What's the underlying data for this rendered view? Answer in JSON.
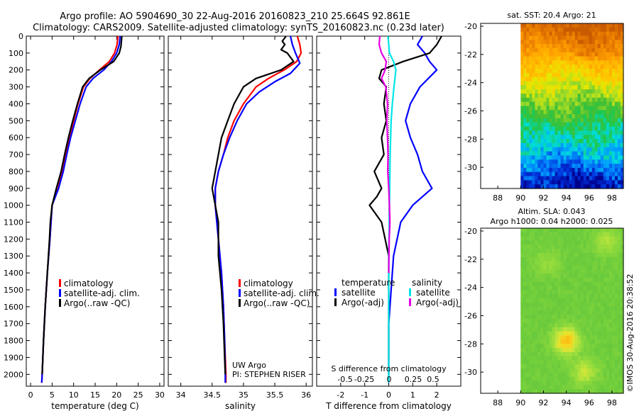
{
  "header": {
    "line1": "Argo profile: AO 5904690_30 22-Aug-2016 20160823_210 25.664S 92.861E",
    "line2": "Climatology: CARS2009. Satellite-adjusted climatology: synTS_20160823.nc (0.23d later)"
  },
  "credit": "©IMOS 30-Aug-2016 20:38:52",
  "colors": {
    "climatology": "#ff0000",
    "satellite": "#0000ff",
    "argo": "#000000",
    "sat_salinity": "#00e5e5",
    "argo_salinity": "#e600e6"
  },
  "chart_data": [
    {
      "id": "temperature",
      "type": "line",
      "xlabel": "temperature (deg C)",
      "xlim": [
        -1,
        31
      ],
      "ylim": [
        2070,
        0
      ],
      "xticks": [
        0,
        5,
        10,
        15,
        20,
        25,
        30
      ],
      "yticks": [
        0,
        100,
        200,
        300,
        400,
        500,
        600,
        700,
        800,
        900,
        1000,
        1100,
        1200,
        1300,
        1400,
        1500,
        1600,
        1700,
        1800,
        1900,
        2000
      ],
      "legend": [
        "climatology",
        "satellite-adj. clim.",
        "Argo(..raw -QC)"
      ],
      "series": [
        {
          "name": "climatology",
          "color": "#ff0000",
          "points": [
            [
              20.3,
              0
            ],
            [
              20.1,
              50
            ],
            [
              19.5,
              100
            ],
            [
              18.3,
              150
            ],
            [
              16.0,
              200
            ],
            [
              13.8,
              250
            ],
            [
              12.3,
              300
            ],
            [
              11.0,
              400
            ],
            [
              10.0,
              500
            ],
            [
              9.0,
              600
            ],
            [
              8.2,
              700
            ],
            [
              7.4,
              800
            ],
            [
              6.4,
              900
            ],
            [
              5.0,
              1000
            ],
            [
              4.5,
              1200
            ],
            [
              3.9,
              1400
            ],
            [
              3.4,
              1600
            ],
            [
              3.0,
              1800
            ],
            [
              2.7,
              2000
            ],
            [
              2.6,
              2050
            ]
          ]
        },
        {
          "name": "satellite-adj. clim.",
          "color": "#0000ff",
          "points": [
            [
              20.8,
              0
            ],
            [
              20.6,
              50
            ],
            [
              20.0,
              100
            ],
            [
              18.8,
              150
            ],
            [
              17.0,
              200
            ],
            [
              14.5,
              250
            ],
            [
              12.9,
              300
            ],
            [
              11.5,
              400
            ],
            [
              10.4,
              500
            ],
            [
              9.3,
              600
            ],
            [
              8.4,
              700
            ],
            [
              7.6,
              800
            ],
            [
              6.5,
              900
            ],
            [
              5.0,
              1000
            ],
            [
              4.5,
              1200
            ],
            [
              3.9,
              1400
            ],
            [
              3.4,
              1600
            ],
            [
              3.0,
              1800
            ],
            [
              2.7,
              2000
            ],
            [
              2.6,
              2050
            ]
          ]
        },
        {
          "name": "Argo(..raw -QC)",
          "color": "#000000",
          "points": [
            [
              21.2,
              0
            ],
            [
              21.1,
              30
            ],
            [
              21.0,
              60
            ],
            [
              20.6,
              100
            ],
            [
              19.3,
              150
            ],
            [
              16.2,
              200
            ],
            [
              13.6,
              250
            ],
            [
              12.1,
              300
            ],
            [
              10.9,
              400
            ],
            [
              9.8,
              500
            ],
            [
              8.8,
              600
            ],
            [
              7.9,
              700
            ],
            [
              7.1,
              800
            ],
            [
              6.0,
              900
            ],
            [
              5.0,
              1000
            ],
            [
              4.6,
              1100
            ],
            [
              4.4,
              1200
            ],
            [
              3.9,
              1400
            ],
            [
              3.4,
              1600
            ],
            [
              3.0,
              1800
            ],
            [
              2.7,
              2000
            ]
          ]
        }
      ]
    },
    {
      "id": "salinity",
      "type": "line",
      "xlabel": "salinity",
      "xlim": [
        33.8,
        36.1
      ],
      "ylim": [
        2070,
        0
      ],
      "xticks": [
        34,
        34.5,
        35,
        35.5,
        36
      ],
      "xtick_labels": [
        "34",
        "34.5",
        "35",
        "35.5",
        "36"
      ],
      "legend": [
        "climatology",
        "satellite-adj. clim.",
        "Argo(..raw -QC)"
      ],
      "annotation": [
        "UW Argo",
        "PI: STEPHEN RISER"
      ],
      "series": [
        {
          "name": "climatology",
          "color": "#ff0000",
          "points": [
            [
              35.86,
              0
            ],
            [
              35.9,
              50
            ],
            [
              35.92,
              100
            ],
            [
              35.85,
              150
            ],
            [
              35.65,
              200
            ],
            [
              35.4,
              250
            ],
            [
              35.2,
              300
            ],
            [
              35.0,
              400
            ],
            [
              34.85,
              500
            ],
            [
              34.75,
              600
            ],
            [
              34.68,
              700
            ],
            [
              34.6,
              800
            ],
            [
              34.55,
              900
            ],
            [
              34.55,
              1000
            ],
            [
              34.6,
              1200
            ],
            [
              34.65,
              1400
            ],
            [
              34.68,
              1600
            ],
            [
              34.7,
              1800
            ],
            [
              34.72,
              2000
            ],
            [
              34.72,
              2050
            ]
          ]
        },
        {
          "name": "satellite-adj. clim.",
          "color": "#0000ff",
          "points": [
            [
              35.75,
              0
            ],
            [
              35.78,
              50
            ],
            [
              35.83,
              100
            ],
            [
              35.9,
              160
            ],
            [
              35.75,
              220
            ],
            [
              35.5,
              270
            ],
            [
              35.25,
              330
            ],
            [
              35.05,
              400
            ],
            [
              34.9,
              500
            ],
            [
              34.78,
              600
            ],
            [
              34.68,
              700
            ],
            [
              34.6,
              800
            ],
            [
              34.55,
              900
            ],
            [
              34.55,
              1000
            ],
            [
              34.6,
              1200
            ],
            [
              34.65,
              1400
            ],
            [
              34.68,
              1600
            ],
            [
              34.7,
              1800
            ],
            [
              34.71,
              2000
            ],
            [
              34.71,
              2050
            ]
          ]
        },
        {
          "name": "Argo(..raw -QC)",
          "color": "#000000",
          "points": [
            [
              35.68,
              0
            ],
            [
              35.62,
              30
            ],
            [
              35.66,
              50
            ],
            [
              35.6,
              80
            ],
            [
              35.7,
              100
            ],
            [
              35.8,
              150
            ],
            [
              35.6,
              200
            ],
            [
              35.2,
              250
            ],
            [
              35.0,
              300
            ],
            [
              34.85,
              400
            ],
            [
              34.75,
              500
            ],
            [
              34.65,
              600
            ],
            [
              34.6,
              700
            ],
            [
              34.55,
              800
            ],
            [
              34.5,
              900
            ],
            [
              34.55,
              1000
            ],
            [
              34.6,
              1100
            ],
            [
              34.6,
              1300
            ],
            [
              34.65,
              1500
            ],
            [
              34.68,
              1700
            ],
            [
              34.7,
              1900
            ],
            [
              34.71,
              2000
            ]
          ]
        }
      ]
    },
    {
      "id": "difference",
      "type": "line",
      "xlabel_top": "S difference from climatology",
      "xlabel_bottom": "T difference from climatology",
      "xlim": [
        -3,
        3
      ],
      "ylim": [
        2070,
        0
      ],
      "xticks": [
        -2,
        -1,
        0,
        1,
        2
      ],
      "s_ticks": [
        -0.5,
        -0.25,
        0,
        0.25,
        0.5
      ],
      "s_tick_labels": [
        "-0.5",
        "-0.25",
        "0",
        "0.25",
        "0.5"
      ],
      "zero_line": true,
      "legend_groups": [
        {
          "title": "temperature",
          "entries": [
            "satellite",
            "Argo(-adj)"
          ]
        },
        {
          "title": "salinity",
          "entries": [
            "satellite",
            "Argo(-adj)"
          ]
        }
      ],
      "series": [
        {
          "name": "temperature satellite",
          "color": "#0000ff",
          "points": [
            [
              1.4,
              0
            ],
            [
              1.2,
              50
            ],
            [
              1.5,
              100
            ],
            [
              1.7,
              150
            ],
            [
              2.0,
              200
            ],
            [
              1.3,
              300
            ],
            [
              0.9,
              400
            ],
            [
              0.7,
              500
            ],
            [
              0.9,
              600
            ],
            [
              1.2,
              700
            ],
            [
              1.4,
              800
            ],
            [
              1.8,
              900
            ],
            [
              1.0,
              1000
            ],
            [
              0.5,
              1100
            ],
            [
              0.2,
              1300
            ],
            [
              0.1,
              1500
            ],
            [
              0.0,
              1700
            ],
            [
              0.0,
              2050
            ]
          ]
        },
        {
          "name": "temperature Argo(-adj)",
          "color": "#000000",
          "points": [
            [
              2.2,
              0
            ],
            [
              2.0,
              50
            ],
            [
              1.7,
              100
            ],
            [
              0.6,
              150
            ],
            [
              -0.3,
              200
            ],
            [
              -0.4,
              250
            ],
            [
              -0.1,
              300
            ],
            [
              -0.2,
              400
            ],
            [
              -0.1,
              500
            ],
            [
              -0.3,
              600
            ],
            [
              -0.2,
              700
            ],
            [
              -0.6,
              800
            ],
            [
              -0.3,
              900
            ],
            [
              -0.5,
              950
            ],
            [
              -0.8,
              1000
            ],
            [
              -0.3,
              1100
            ],
            [
              0.0,
              1300
            ],
            [
              0.0,
              1500
            ],
            [
              0.0,
              2000
            ]
          ]
        },
        {
          "name": "salinity satellite",
          "color": "#00e5e5",
          "points": [
            [
              -0.03,
              0
            ],
            [
              0.03,
              100
            ],
            [
              0.2,
              150
            ],
            [
              0.3,
              200
            ],
            [
              0.22,
              300
            ],
            [
              0.15,
              400
            ],
            [
              0.1,
              500
            ],
            [
              0.06,
              700
            ],
            [
              0.04,
              900
            ],
            [
              0.02,
              1100
            ],
            [
              0.0,
              1300
            ],
            [
              0.0,
              1500
            ],
            [
              0.0,
              1700
            ],
            [
              0.0,
              2050
            ]
          ]
        },
        {
          "name": "salinity Argo(-adj)",
          "color": "#e600e6",
          "points": [
            [
              -0.37,
              0
            ],
            [
              -0.4,
              50
            ],
            [
              -0.3,
              100
            ],
            [
              -0.1,
              150
            ],
            [
              -0.15,
              200
            ],
            [
              -0.3,
              250
            ],
            [
              -0.12,
              300
            ],
            [
              -0.05,
              400
            ],
            [
              -0.08,
              500
            ],
            [
              -0.05,
              600
            ],
            [
              -0.03,
              700
            ],
            [
              -0.04,
              800
            ],
            [
              0.0,
              900
            ],
            [
              0.03,
              1000
            ],
            [
              0.05,
              1100
            ],
            [
              0.02,
              1200
            ],
            [
              0.01,
              1300
            ],
            [
              0.0,
              1400
            ]
          ]
        }
      ]
    },
    {
      "id": "sst_map",
      "type": "heatmap",
      "title": "sat. SST: 20.4 Argo: 21",
      "xlim": [
        86.5,
        99.0
      ],
      "ylim": [
        -31.5,
        -19.8
      ],
      "xticks": [
        88,
        90,
        92,
        94,
        96,
        98
      ],
      "yticks": [
        -20,
        -22,
        -24,
        -26,
        -28,
        -30
      ],
      "data_xlim": [
        90,
        99
      ],
      "rows": [
        {
          "lat": -20.0,
          "value": 27
        },
        {
          "lat": -21.0,
          "value": 26
        },
        {
          "lat": -22.0,
          "value": 25
        },
        {
          "lat": -23.0,
          "value": 23.5
        },
        {
          "lat": -24.0,
          "value": 22.5
        },
        {
          "lat": -25.0,
          "value": 21.5
        },
        {
          "lat": -26.0,
          "value": 20.5
        },
        {
          "lat": -27.0,
          "value": 19.5
        },
        {
          "lat": -28.0,
          "value": 18.8
        },
        {
          "lat": -29.0,
          "value": 18.0
        },
        {
          "lat": -30.0,
          "value": 17.2
        },
        {
          "lat": -31.0,
          "value": 16.0
        }
      ]
    },
    {
      "id": "sla_map",
      "type": "heatmap",
      "title": [
        "Altim. SLA: 0.043",
        "Argo h1000: 0.04 h2000: 0.025"
      ],
      "xlim": [
        86.5,
        99.0
      ],
      "ylim": [
        -31.5,
        -19.8
      ],
      "xticks": [
        88,
        90,
        92,
        94,
        96,
        98
      ],
      "yticks": [
        -20,
        -22,
        -24,
        -26,
        -28,
        -30
      ],
      "data_xlim": [
        90,
        99
      ],
      "background_value": 0.04,
      "features": [
        {
          "lon": 94,
          "lat": -27.8,
          "value": 0.2
        },
        {
          "lon": 95.6,
          "lat": -30.0,
          "value": 0.12
        },
        {
          "lon": 97.5,
          "lat": -20.7,
          "value": 0.1
        },
        {
          "lon": 92.3,
          "lat": -22.2,
          "value": 0.08
        }
      ]
    }
  ]
}
